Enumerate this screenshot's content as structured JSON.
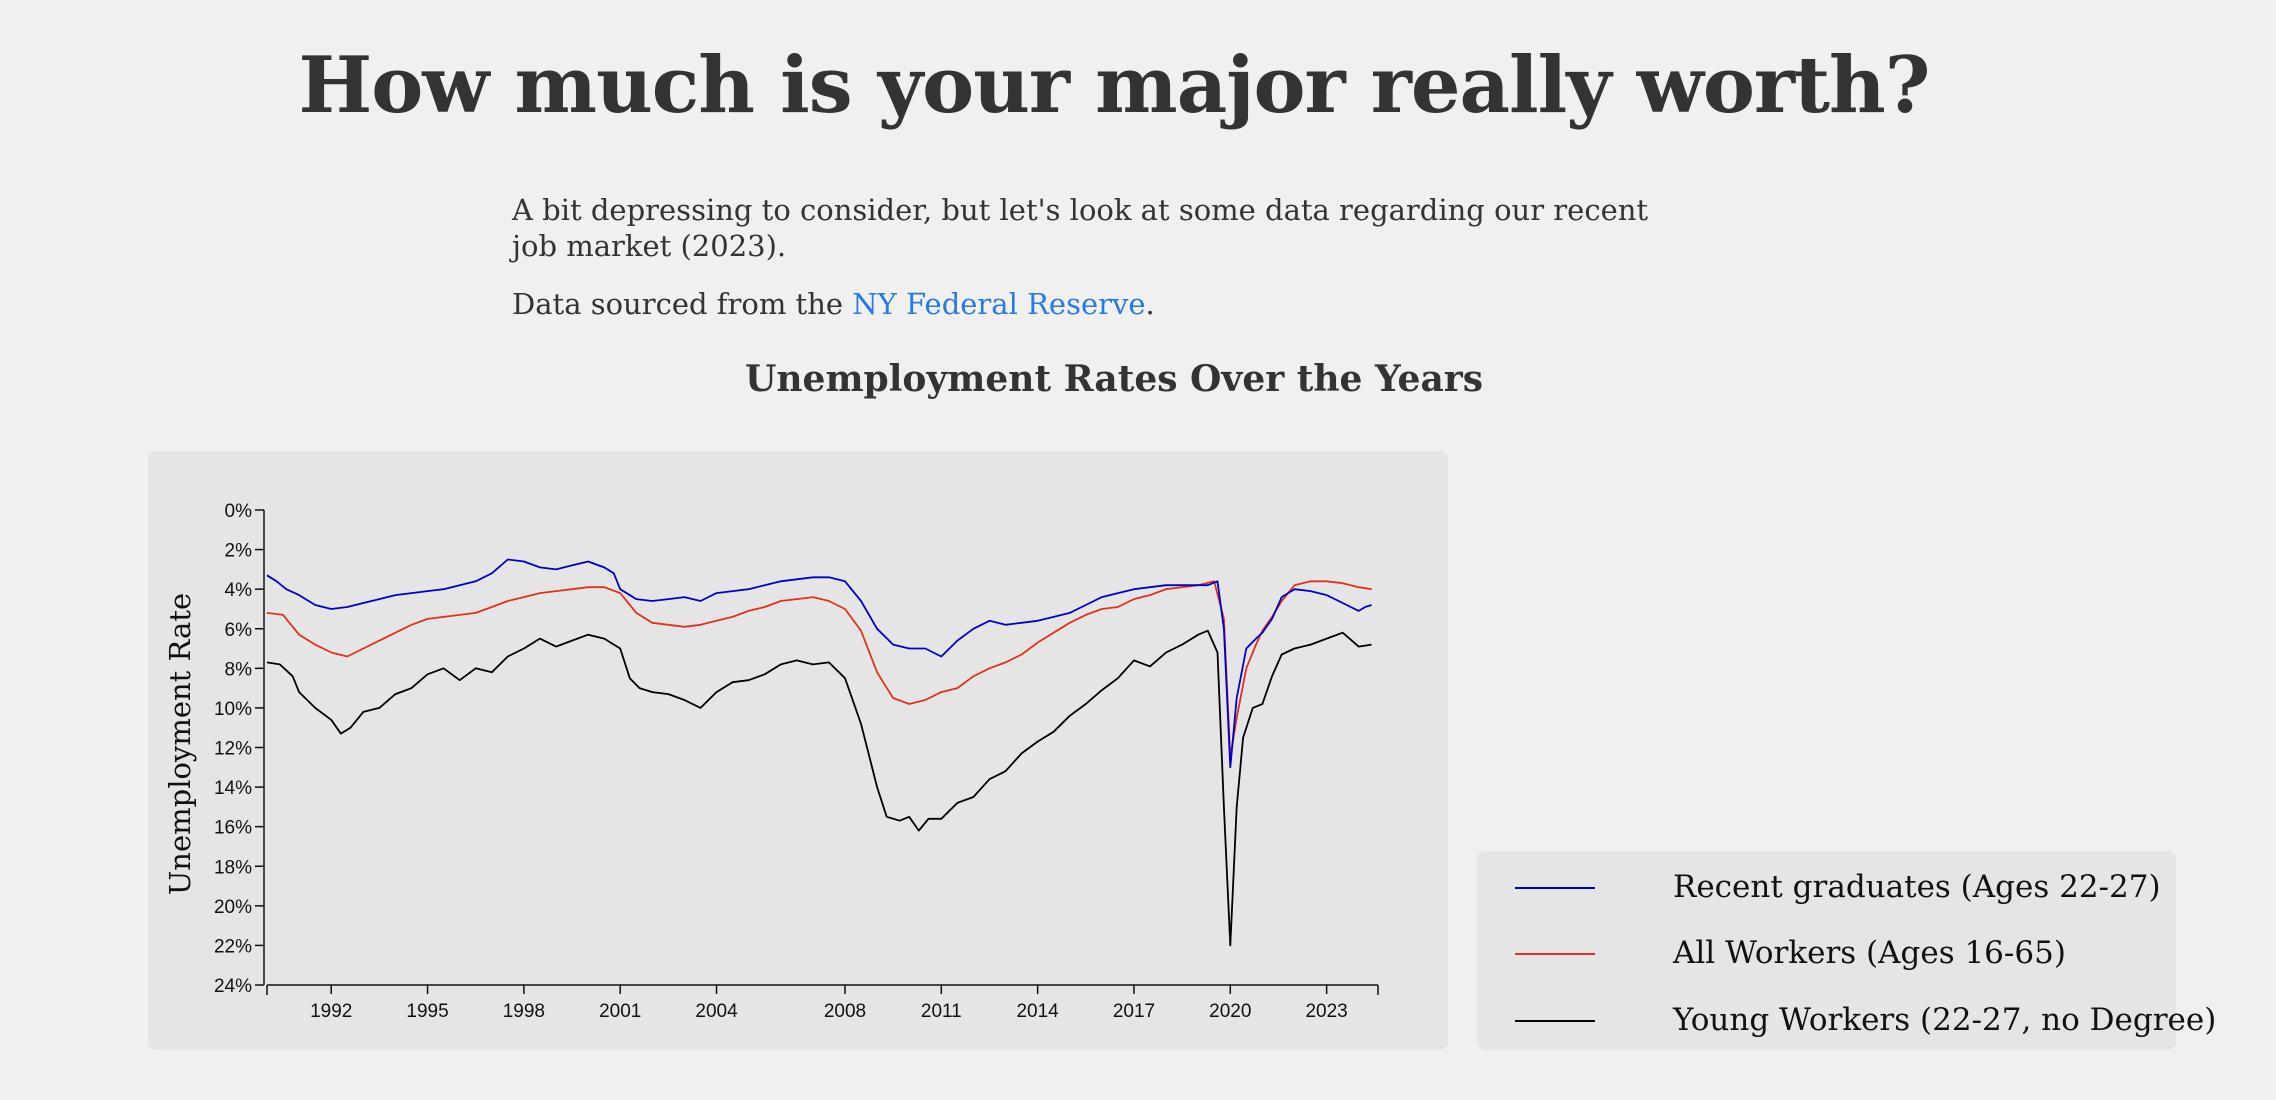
{
  "page": {
    "headline": "How much is your major really worth?",
    "intro": "A bit depressing to consider, but let's look at some data regarding our recent job market (2023).",
    "source_prefix": "Data sourced from the ",
    "source_link": "NY Federal Reserve",
    "source_suffix": "."
  },
  "colors": {
    "background": "#f0f0f0",
    "panel": "#e5e5e5",
    "link": "#2a7ae2",
    "recent_graduates": "#0000cc",
    "all_workers": "#e0321e",
    "young_workers": "#000000"
  },
  "chart_data": {
    "type": "line",
    "title": "Unemployment Rates Over the Years",
    "ylabel": "Unemployment Rate",
    "xlabel": "",
    "xlim": [
      1990,
      2024.6
    ],
    "ylim": [
      0,
      24
    ],
    "y_inverted": true,
    "x_ticks": [
      "1992",
      "1995",
      "1998",
      "2001",
      "2004",
      "2008",
      "2011",
      "2014",
      "2017",
      "2020",
      "2023"
    ],
    "x_tick_values": [
      1992,
      1995,
      1998,
      2001,
      2004,
      2008,
      2011,
      2014,
      2017,
      2020,
      2023
    ],
    "y_ticks": [
      "0%",
      "2%",
      "4%",
      "6%",
      "8%",
      "10%",
      "12%",
      "14%",
      "16%",
      "18%",
      "20%",
      "22%",
      "24%"
    ],
    "y_tick_values": [
      0,
      2,
      4,
      6,
      8,
      10,
      12,
      14,
      16,
      18,
      20,
      22,
      24
    ],
    "grid": false,
    "legend_position": "bottom-right",
    "series": [
      {
        "name": "Recent graduates (Ages 22-27)",
        "color_key": "recent_graduates",
        "points": [
          [
            1990.0,
            3.3
          ],
          [
            1990.3,
            3.6
          ],
          [
            1990.6,
            4.0
          ],
          [
            1991.0,
            4.3
          ],
          [
            1991.5,
            4.8
          ],
          [
            1992.0,
            5.0
          ],
          [
            1992.5,
            4.9
          ],
          [
            1993.0,
            4.7
          ],
          [
            1993.5,
            4.5
          ],
          [
            1994.0,
            4.3
          ],
          [
            1994.5,
            4.2
          ],
          [
            1995.0,
            4.1
          ],
          [
            1995.5,
            4.0
          ],
          [
            1996.0,
            3.8
          ],
          [
            1996.5,
            3.6
          ],
          [
            1997.0,
            3.2
          ],
          [
            1997.5,
            2.5
          ],
          [
            1998.0,
            2.6
          ],
          [
            1998.5,
            2.9
          ],
          [
            1999.0,
            3.0
          ],
          [
            1999.5,
            2.8
          ],
          [
            2000.0,
            2.6
          ],
          [
            2000.5,
            2.9
          ],
          [
            2000.8,
            3.2
          ],
          [
            2001.0,
            4.0
          ],
          [
            2001.5,
            4.5
          ],
          [
            2002.0,
            4.6
          ],
          [
            2002.5,
            4.5
          ],
          [
            2003.0,
            4.4
          ],
          [
            2003.5,
            4.6
          ],
          [
            2004.0,
            4.2
          ],
          [
            2004.5,
            4.1
          ],
          [
            2005.0,
            4.0
          ],
          [
            2005.5,
            3.8
          ],
          [
            2006.0,
            3.6
          ],
          [
            2006.5,
            3.5
          ],
          [
            2007.0,
            3.4
          ],
          [
            2007.5,
            3.4
          ],
          [
            2008.0,
            3.6
          ],
          [
            2008.5,
            4.6
          ],
          [
            2009.0,
            6.0
          ],
          [
            2009.5,
            6.8
          ],
          [
            2010.0,
            7.0
          ],
          [
            2010.5,
            7.0
          ],
          [
            2011.0,
            7.4
          ],
          [
            2011.5,
            6.6
          ],
          [
            2012.0,
            6.0
          ],
          [
            2012.5,
            5.6
          ],
          [
            2013.0,
            5.8
          ],
          [
            2013.5,
            5.7
          ],
          [
            2014.0,
            5.6
          ],
          [
            2014.5,
            5.4
          ],
          [
            2015.0,
            5.2
          ],
          [
            2015.5,
            4.8
          ],
          [
            2016.0,
            4.4
          ],
          [
            2016.5,
            4.2
          ],
          [
            2017.0,
            4.0
          ],
          [
            2017.5,
            3.9
          ],
          [
            2018.0,
            3.8
          ],
          [
            2018.5,
            3.8
          ],
          [
            2019.0,
            3.8
          ],
          [
            2019.3,
            3.8
          ],
          [
            2019.6,
            3.6
          ],
          [
            2019.8,
            6.0
          ],
          [
            2020.0,
            13.0
          ],
          [
            2020.2,
            9.5
          ],
          [
            2020.5,
            7.0
          ],
          [
            2020.8,
            6.5
          ],
          [
            2021.0,
            6.2
          ],
          [
            2021.3,
            5.5
          ],
          [
            2021.6,
            4.4
          ],
          [
            2022.0,
            4.0
          ],
          [
            2022.5,
            4.1
          ],
          [
            2023.0,
            4.3
          ],
          [
            2023.5,
            4.7
          ],
          [
            2024.0,
            5.1
          ],
          [
            2024.2,
            4.9
          ],
          [
            2024.4,
            4.8
          ]
        ]
      },
      {
        "name": "All Workers (Ages 16-65)",
        "color_key": "all_workers",
        "points": [
          [
            1990.0,
            5.2
          ],
          [
            1990.5,
            5.3
          ],
          [
            1991.0,
            6.3
          ],
          [
            1991.5,
            6.8
          ],
          [
            1992.0,
            7.2
          ],
          [
            1992.5,
            7.4
          ],
          [
            1993.0,
            7.0
          ],
          [
            1993.5,
            6.6
          ],
          [
            1994.0,
            6.2
          ],
          [
            1994.5,
            5.8
          ],
          [
            1995.0,
            5.5
          ],
          [
            1995.5,
            5.4
          ],
          [
            1996.0,
            5.3
          ],
          [
            1996.5,
            5.2
          ],
          [
            1997.0,
            4.9
          ],
          [
            1997.5,
            4.6
          ],
          [
            1998.0,
            4.4
          ],
          [
            1998.5,
            4.2
          ],
          [
            1999.0,
            4.1
          ],
          [
            1999.5,
            4.0
          ],
          [
            2000.0,
            3.9
          ],
          [
            2000.5,
            3.9
          ],
          [
            2001.0,
            4.2
          ],
          [
            2001.5,
            5.2
          ],
          [
            2002.0,
            5.7
          ],
          [
            2002.5,
            5.8
          ],
          [
            2003.0,
            5.9
          ],
          [
            2003.5,
            5.8
          ],
          [
            2004.0,
            5.6
          ],
          [
            2004.5,
            5.4
          ],
          [
            2005.0,
            5.1
          ],
          [
            2005.5,
            4.9
          ],
          [
            2006.0,
            4.6
          ],
          [
            2006.5,
            4.5
          ],
          [
            2007.0,
            4.4
          ],
          [
            2007.5,
            4.6
          ],
          [
            2008.0,
            5.0
          ],
          [
            2008.5,
            6.1
          ],
          [
            2009.0,
            8.2
          ],
          [
            2009.5,
            9.5
          ],
          [
            2010.0,
            9.8
          ],
          [
            2010.5,
            9.6
          ],
          [
            2011.0,
            9.2
          ],
          [
            2011.5,
            9.0
          ],
          [
            2012.0,
            8.4
          ],
          [
            2012.5,
            8.0
          ],
          [
            2013.0,
            7.7
          ],
          [
            2013.5,
            7.3
          ],
          [
            2014.0,
            6.7
          ],
          [
            2014.5,
            6.2
          ],
          [
            2015.0,
            5.7
          ],
          [
            2015.5,
            5.3
          ],
          [
            2016.0,
            5.0
          ],
          [
            2016.5,
            4.9
          ],
          [
            2017.0,
            4.5
          ],
          [
            2017.5,
            4.3
          ],
          [
            2018.0,
            4.0
          ],
          [
            2018.5,
            3.9
          ],
          [
            2019.0,
            3.8
          ],
          [
            2019.5,
            3.6
          ],
          [
            2019.8,
            5.5
          ],
          [
            2020.0,
            12.5
          ],
          [
            2020.2,
            10.5
          ],
          [
            2020.5,
            8.0
          ],
          [
            2020.8,
            6.8
          ],
          [
            2021.0,
            6.1
          ],
          [
            2021.3,
            5.4
          ],
          [
            2021.6,
            4.6
          ],
          [
            2022.0,
            3.8
          ],
          [
            2022.5,
            3.6
          ],
          [
            2023.0,
            3.6
          ],
          [
            2023.5,
            3.7
          ],
          [
            2024.0,
            3.9
          ],
          [
            2024.4,
            4.0
          ]
        ]
      },
      {
        "name": "Young Workers (22-27, no Degree)",
        "color_key": "young_workers",
        "points": [
          [
            1990.0,
            7.7
          ],
          [
            1990.4,
            7.8
          ],
          [
            1990.8,
            8.4
          ],
          [
            1991.0,
            9.2
          ],
          [
            1991.5,
            10.0
          ],
          [
            1992.0,
            10.6
          ],
          [
            1992.3,
            11.3
          ],
          [
            1992.6,
            11.0
          ],
          [
            1993.0,
            10.2
          ],
          [
            1993.5,
            10.0
          ],
          [
            1994.0,
            9.3
          ],
          [
            1994.5,
            9.0
          ],
          [
            1995.0,
            8.3
          ],
          [
            1995.5,
            8.0
          ],
          [
            1996.0,
            8.6
          ],
          [
            1996.5,
            8.0
          ],
          [
            1997.0,
            8.2
          ],
          [
            1997.5,
            7.4
          ],
          [
            1998.0,
            7.0
          ],
          [
            1998.5,
            6.5
          ],
          [
            1999.0,
            6.9
          ],
          [
            1999.5,
            6.6
          ],
          [
            2000.0,
            6.3
          ],
          [
            2000.5,
            6.5
          ],
          [
            2001.0,
            7.0
          ],
          [
            2001.3,
            8.5
          ],
          [
            2001.6,
            9.0
          ],
          [
            2002.0,
            9.2
          ],
          [
            2002.5,
            9.3
          ],
          [
            2003.0,
            9.6
          ],
          [
            2003.5,
            10.0
          ],
          [
            2004.0,
            9.2
          ],
          [
            2004.5,
            8.7
          ],
          [
            2005.0,
            8.6
          ],
          [
            2005.5,
            8.3
          ],
          [
            2006.0,
            7.8
          ],
          [
            2006.5,
            7.6
          ],
          [
            2007.0,
            7.8
          ],
          [
            2007.5,
            7.7
          ],
          [
            2008.0,
            8.5
          ],
          [
            2008.5,
            10.8
          ],
          [
            2009.0,
            14.0
          ],
          [
            2009.3,
            15.5
          ],
          [
            2009.7,
            15.7
          ],
          [
            2010.0,
            15.5
          ],
          [
            2010.3,
            16.2
          ],
          [
            2010.6,
            15.6
          ],
          [
            2011.0,
            15.6
          ],
          [
            2011.5,
            14.8
          ],
          [
            2012.0,
            14.5
          ],
          [
            2012.5,
            13.6
          ],
          [
            2013.0,
            13.2
          ],
          [
            2013.5,
            12.3
          ],
          [
            2014.0,
            11.7
          ],
          [
            2014.5,
            11.2
          ],
          [
            2015.0,
            10.4
          ],
          [
            2015.5,
            9.8
          ],
          [
            2016.0,
            9.1
          ],
          [
            2016.5,
            8.5
          ],
          [
            2017.0,
            7.6
          ],
          [
            2017.5,
            7.9
          ],
          [
            2018.0,
            7.2
          ],
          [
            2018.5,
            6.8
          ],
          [
            2019.0,
            6.3
          ],
          [
            2019.3,
            6.1
          ],
          [
            2019.6,
            7.2
          ],
          [
            2019.8,
            15.0
          ],
          [
            2020.0,
            22.0
          ],
          [
            2020.2,
            15.0
          ],
          [
            2020.4,
            11.5
          ],
          [
            2020.7,
            10.0
          ],
          [
            2021.0,
            9.8
          ],
          [
            2021.3,
            8.4
          ],
          [
            2021.6,
            7.3
          ],
          [
            2022.0,
            7.0
          ],
          [
            2022.5,
            6.8
          ],
          [
            2023.0,
            6.5
          ],
          [
            2023.5,
            6.2
          ],
          [
            2024.0,
            6.9
          ],
          [
            2024.4,
            6.8
          ]
        ]
      }
    ]
  }
}
